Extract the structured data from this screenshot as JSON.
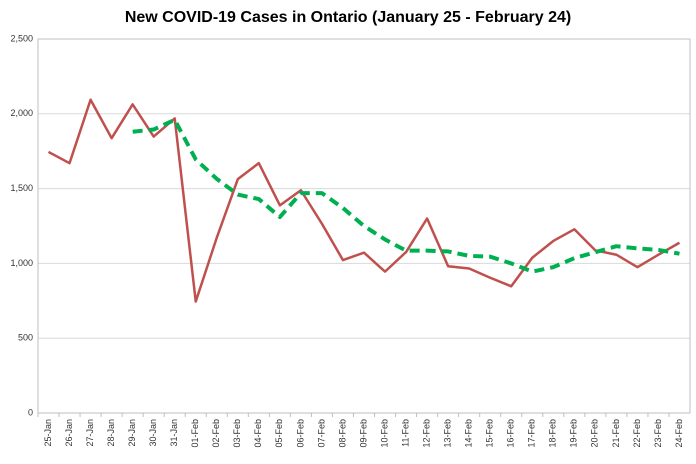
{
  "chart_data": {
    "type": "line",
    "title": "New COVID-19 Cases in Ontario (January 25 - February 24)",
    "categories": [
      "25-Jan",
      "26-Jan",
      "27-Jan",
      "28-Jan",
      "29-Jan",
      "30-Jan",
      "31-Jan",
      "01-Feb",
      "02-Feb",
      "03-Feb",
      "04-Feb",
      "05-Feb",
      "06-Feb",
      "07-Feb",
      "08-Feb",
      "09-Feb",
      "10-Feb",
      "11-Feb",
      "12-Feb",
      "13-Feb",
      "14-Feb",
      "15-Feb",
      "16-Feb",
      "17-Feb",
      "18-Feb",
      "19-Feb",
      "20-Feb",
      "21-Feb",
      "22-Feb",
      "23-Feb",
      "24-Feb"
    ],
    "series": [
      {
        "color": "#c0504d",
        "dashed": false,
        "values": [
          1745,
          1670,
          2094,
          1837,
          2063,
          1848,
          1969,
          745,
          1172,
          1563,
          1670,
          1388,
          1489,
          1265,
          1022,
          1072,
          945,
          1076,
          1300,
          981,
          966,
          904,
          847,
          1038,
          1150,
          1228,
          1087,
          1058,
          975,
          1058,
          1138
        ]
      },
      {
        "color": "#00b050",
        "dashed": true,
        "values": [
          null,
          null,
          null,
          null,
          1880,
          1895,
          1960,
          1695,
          1565,
          1460,
          1430,
          1310,
          1470,
          1470,
          1370,
          1250,
          1160,
          1085,
          1085,
          1080,
          1050,
          1045,
          1000,
          945,
          975,
          1035,
          1075,
          1115,
          1100,
          1090,
          1065
        ]
      }
    ],
    "ylim": [
      0,
      2500
    ],
    "yticks": [
      0,
      500,
      {
        "value": 1000,
        "label": "1,000"
      },
      {
        "value": 1500,
        "label": "1,500"
      },
      {
        "value": 2000,
        "label": "2,000"
      },
      {
        "value": 2500,
        "label": "2,500"
      }
    ],
    "grid": true
  }
}
